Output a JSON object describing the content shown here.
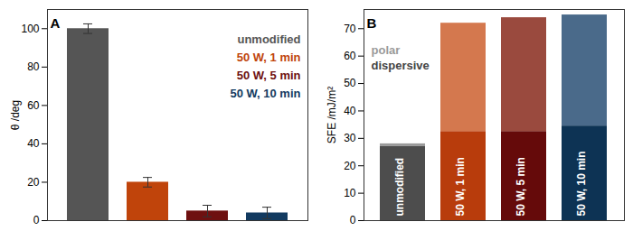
{
  "chart_data": [
    {
      "type": "bar",
      "title": "A",
      "ylabel": "θ /deg",
      "categories": [
        "unmodified",
        "50 W, 1 min",
        "50 W, 5 min",
        "50 W, 10 min"
      ],
      "values": [
        100,
        20,
        5,
        4
      ],
      "errors": [
        2.5,
        2.5,
        3,
        3
      ],
      "colors": [
        "#555555",
        "#c0440b",
        "#6e1010",
        "#123a60"
      ],
      "ylim": [
        0,
        110
      ],
      "yticks": [
        0,
        20,
        40,
        60,
        80,
        100
      ],
      "legend": "top-right",
      "tick_labels": "y"
    },
    {
      "type": "bar",
      "title": "B",
      "ylabel": "SFE /mJ/m²",
      "stacked": true,
      "categories": [
        "unmodified",
        "50 W, 1 min",
        "50 W, 5 min",
        "50 W, 10 min"
      ],
      "series": [
        {
          "name": "dispersive",
          "color": "#444444",
          "colors": [
            "#4d4d4d",
            "#b83c0c",
            "#650a0a",
            "#0d3354"
          ],
          "values": [
            27,
            32.5,
            32.5,
            34.5
          ]
        },
        {
          "name": "polar",
          "color": "#9a9a9a",
          "colors": [
            "#9a9a9a",
            "#d4784e",
            "#9a4a3e",
            "#4a6a8a"
          ],
          "values": [
            1,
            39.5,
            41.5,
            40.5
          ]
        }
      ],
      "ylim": [
        0,
        77
      ],
      "yticks": [
        0,
        10,
        20,
        30,
        40,
        50,
        60,
        70
      ],
      "legend": "top-left",
      "tick_labels": "y"
    }
  ]
}
